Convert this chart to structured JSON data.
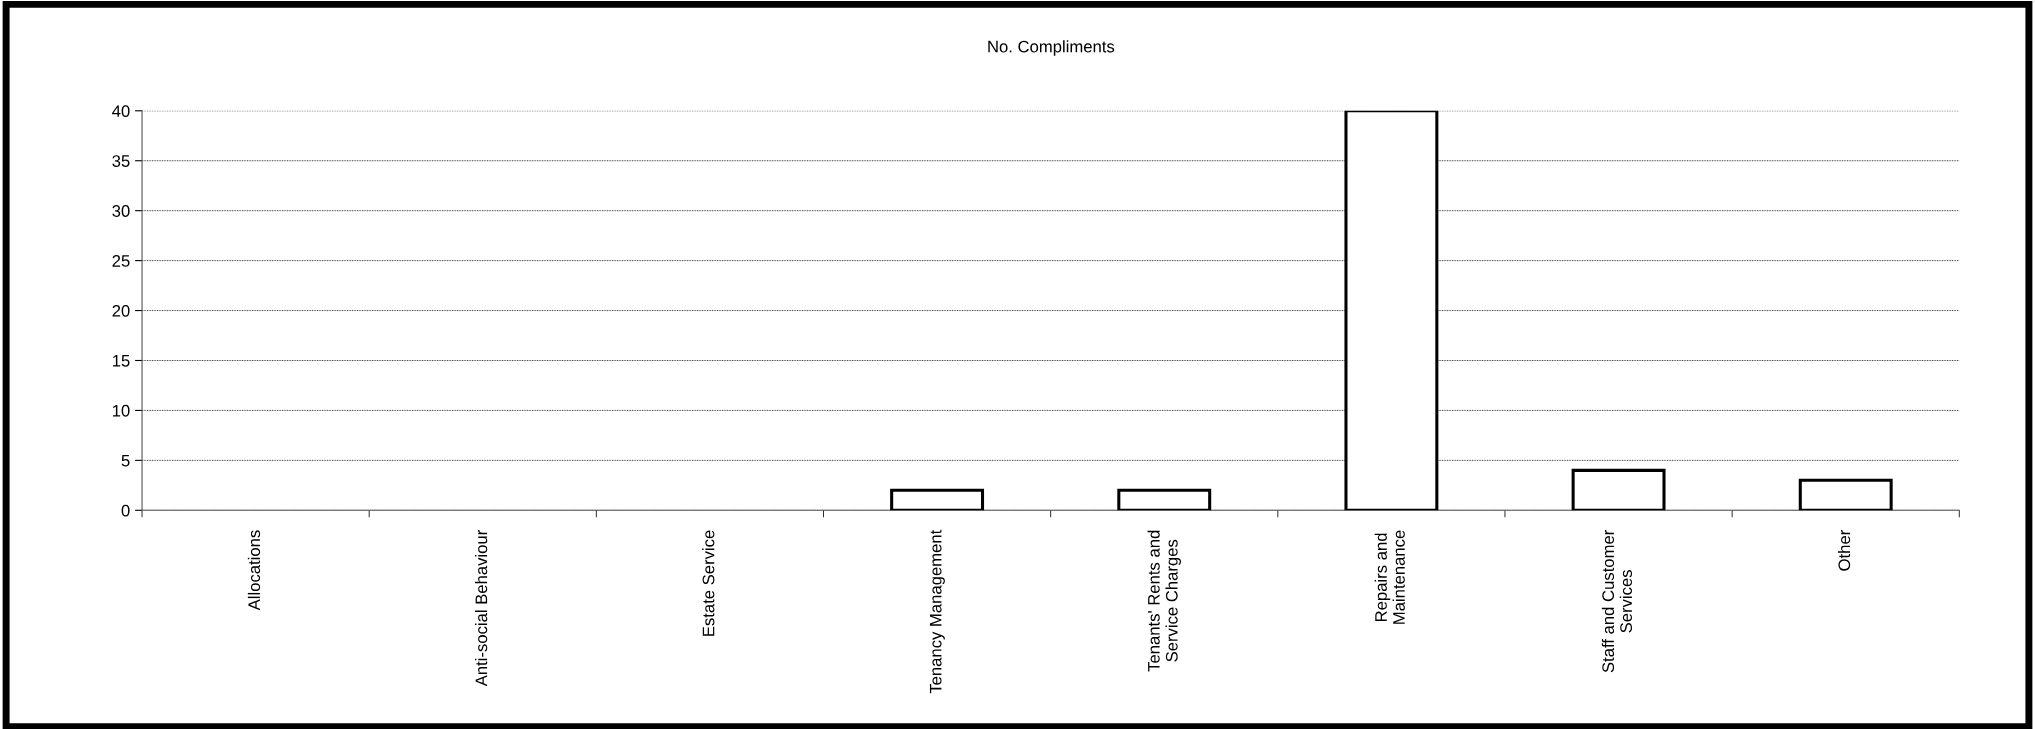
{
  "chart_data": {
    "type": "bar",
    "title": "No. Compliments",
    "categories": [
      "Allocations",
      "Anti-social Behaviour",
      "Estate Service",
      "Tenancy Management",
      "Tenants' Rents and\nService Charges",
      "Repairs and\nMaintenance",
      "Staff and Customer\nServices",
      "Other"
    ],
    "values": [
      0,
      0,
      0,
      2,
      2,
      40,
      4,
      3
    ],
    "color": "#ffffff",
    "ylim": [
      0,
      40
    ],
    "yticks": [
      0,
      5,
      10,
      15,
      20,
      25,
      30,
      35,
      40
    ],
    "grid": "y",
    "legend": false
  }
}
